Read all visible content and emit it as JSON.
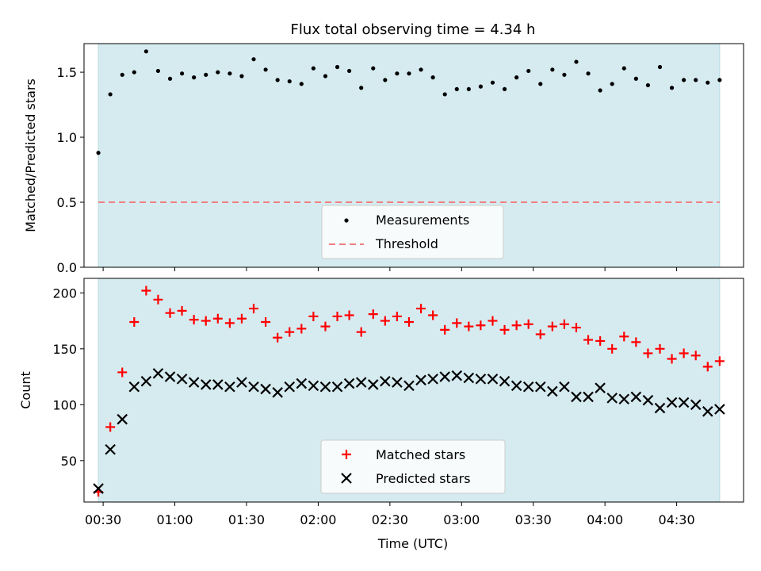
{
  "chart_data": [
    {
      "type": "scatter",
      "title": "Flux total observing time = 4.34 h",
      "ylabel": "Matched/Predicted stars",
      "xlabel": "",
      "xlim": [
        "00:22",
        "04:58"
      ],
      "ylim": [
        0,
        1.72
      ],
      "shaded_span": [
        "00:28",
        "04:48"
      ],
      "shade_color": "#d5ebf0",
      "yticks": [
        0.0,
        0.5,
        1.0,
        1.5
      ],
      "yticklabels": [
        "0.0",
        "0.5",
        "1.0",
        "1.5"
      ],
      "legend_placement": "bottom-center",
      "threshold": {
        "name": "Threshold",
        "value": 0.5,
        "color": "#f08080",
        "style": "dashed"
      },
      "series": [
        {
          "name": "Measurements",
          "marker": "dot",
          "color": "#000000",
          "x": [
            "00:28",
            "00:33",
            "00:38",
            "00:43",
            "00:48",
            "00:53",
            "00:58",
            "01:03",
            "01:08",
            "01:13",
            "01:18",
            "01:23",
            "01:28",
            "01:33",
            "01:38",
            "01:43",
            "01:48",
            "01:53",
            "01:58",
            "02:03",
            "02:08",
            "02:13",
            "02:18",
            "02:23",
            "02:28",
            "02:33",
            "02:38",
            "02:43",
            "02:48",
            "02:53",
            "02:58",
            "03:03",
            "03:08",
            "03:13",
            "03:18",
            "03:23",
            "03:28",
            "03:33",
            "03:38",
            "03:43",
            "03:48",
            "03:53",
            "03:58",
            "04:03",
            "04:08",
            "04:13",
            "04:18",
            "04:23",
            "04:28",
            "04:33",
            "04:38",
            "04:43",
            "04:48"
          ],
          "y": [
            0.88,
            1.33,
            1.48,
            1.5,
            1.66,
            1.51,
            1.45,
            1.49,
            1.46,
            1.48,
            1.5,
            1.49,
            1.47,
            1.6,
            1.52,
            1.44,
            1.43,
            1.41,
            1.53,
            1.47,
            1.54,
            1.51,
            1.38,
            1.53,
            1.44,
            1.49,
            1.49,
            1.52,
            1.46,
            1.33,
            1.37,
            1.37,
            1.39,
            1.42,
            1.37,
            1.46,
            1.51,
            1.41,
            1.52,
            1.48,
            1.58,
            1.49,
            1.36,
            1.41,
            1.53,
            1.45,
            1.4,
            1.54,
            1.38,
            1.44,
            1.44,
            1.42,
            1.44
          ]
        }
      ]
    },
    {
      "type": "scatter",
      "title": "",
      "xlabel": "Time (UTC)",
      "ylabel": "Count",
      "xlim": [
        "00:22",
        "04:58"
      ],
      "ylim": [
        13,
        213
      ],
      "shaded_span": [
        "00:28",
        "04:48"
      ],
      "shade_color": "#d5ebf0",
      "xticks": [
        "00:30",
        "01:00",
        "01:30",
        "02:00",
        "02:30",
        "03:00",
        "03:30",
        "04:00",
        "04:30"
      ],
      "yticks": [
        50,
        100,
        150,
        200
      ],
      "yticklabels": [
        "50",
        "100",
        "150",
        "200"
      ],
      "legend_placement": "bottom-center",
      "series": [
        {
          "name": "Matched stars",
          "marker": "plus",
          "color": "#ff0000",
          "x": [
            "00:28",
            "00:33",
            "00:38",
            "00:43",
            "00:48",
            "00:53",
            "00:58",
            "01:03",
            "01:08",
            "01:13",
            "01:18",
            "01:23",
            "01:28",
            "01:33",
            "01:38",
            "01:43",
            "01:48",
            "01:53",
            "01:58",
            "02:03",
            "02:08",
            "02:13",
            "02:18",
            "02:23",
            "02:28",
            "02:33",
            "02:38",
            "02:43",
            "02:48",
            "02:53",
            "02:58",
            "03:03",
            "03:08",
            "03:13",
            "03:18",
            "03:23",
            "03:28",
            "03:33",
            "03:38",
            "03:43",
            "03:48",
            "03:53",
            "03:58",
            "04:03",
            "04:08",
            "04:13",
            "04:18",
            "04:23",
            "04:28",
            "04:33",
            "04:38",
            "04:43",
            "04:48"
          ],
          "y": [
            22,
            80,
            129,
            174,
            202,
            194,
            182,
            184,
            176,
            175,
            177,
            173,
            177,
            186,
            174,
            160,
            165,
            168,
            179,
            170,
            179,
            180,
            165,
            181,
            175,
            179,
            174,
            186,
            180,
            167,
            173,
            170,
            171,
            175,
            167,
            171,
            172,
            163,
            170,
            172,
            169,
            158,
            157,
            150,
            161,
            156,
            146,
            150,
            141,
            146,
            144,
            134,
            139
          ]
        },
        {
          "name": "Predicted stars",
          "marker": "x",
          "color": "#000000",
          "x": [
            "00:28",
            "00:33",
            "00:38",
            "00:43",
            "00:48",
            "00:53",
            "00:58",
            "01:03",
            "01:08",
            "01:13",
            "01:18",
            "01:23",
            "01:28",
            "01:33",
            "01:38",
            "01:43",
            "01:48",
            "01:53",
            "01:58",
            "02:03",
            "02:08",
            "02:13",
            "02:18",
            "02:23",
            "02:28",
            "02:33",
            "02:38",
            "02:43",
            "02:48",
            "02:53",
            "02:58",
            "03:03",
            "03:08",
            "03:13",
            "03:18",
            "03:23",
            "03:28",
            "03:33",
            "03:38",
            "03:43",
            "03:48",
            "03:53",
            "03:58",
            "04:03",
            "04:08",
            "04:13",
            "04:18",
            "04:23",
            "04:28",
            "04:33",
            "04:38",
            "04:43",
            "04:48"
          ],
          "y": [
            25,
            60,
            87,
            116,
            121,
            128,
            125,
            123,
            120,
            118,
            118,
            116,
            120,
            116,
            114,
            111,
            116,
            119,
            117,
            116,
            116,
            119,
            120,
            118,
            121,
            120,
            117,
            122,
            123,
            125,
            126,
            124,
            123,
            123,
            121,
            117,
            116,
            116,
            112,
            116,
            107,
            107,
            115,
            106,
            105,
            107,
            104,
            97,
            102,
            102,
            100,
            94,
            96
          ]
        }
      ]
    }
  ]
}
